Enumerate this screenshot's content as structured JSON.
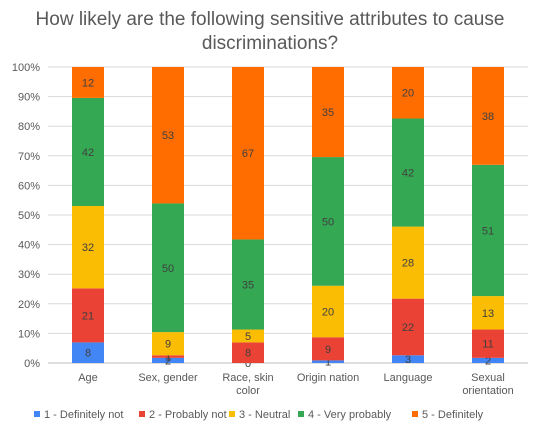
{
  "chart_data": {
    "type": "bar",
    "stacked": "percent",
    "title": "How likely are the following sensitive attributes to cause discriminations?",
    "categories": [
      "Age",
      "Sex, gender",
      "Race, skin color",
      "Origin nation",
      "Language",
      "Sexual orientation"
    ],
    "series": [
      {
        "name": "1 - Definitely not",
        "color": "#4285f4",
        "values": [
          8,
          2,
          0,
          1,
          3,
          2
        ]
      },
      {
        "name": "2 - Probably not",
        "color": "#ea4335",
        "values": [
          21,
          1,
          8,
          9,
          22,
          11
        ]
      },
      {
        "name": "3 - Neutral",
        "color": "#fbbc04",
        "values": [
          32,
          9,
          5,
          20,
          28,
          13
        ]
      },
      {
        "name": "4 - Very probably",
        "color": "#34a853",
        "values": [
          42,
          50,
          35,
          50,
          42,
          51
        ]
      },
      {
        "name": "5 - Definitely",
        "color": "#ff6d01",
        "values": [
          12,
          53,
          67,
          35,
          20,
          38
        ]
      }
    ],
    "y_ticks": [
      "0%",
      "10%",
      "20%",
      "30%",
      "40%",
      "50%",
      "60%",
      "70%",
      "80%",
      "90%",
      "100%"
    ],
    "ylim": [
      0,
      100
    ],
    "grid": true,
    "legend_position": "bottom"
  }
}
